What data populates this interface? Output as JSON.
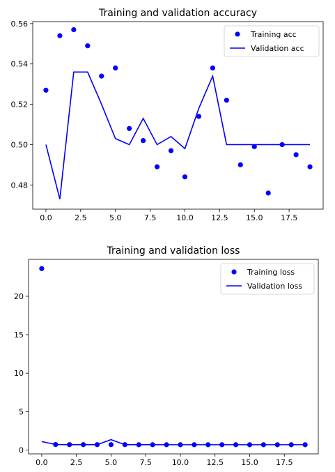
{
  "chart_data": [
    {
      "type": "line",
      "title": "Training and validation accuracy",
      "xlabel": "",
      "ylabel": "",
      "xlim": [
        -0.95,
        19.95
      ],
      "ylim": [
        0.468,
        0.561
      ],
      "xticks": [
        0.0,
        2.5,
        5.0,
        7.5,
        10.0,
        12.5,
        15.0,
        17.5
      ],
      "xtick_labels": [
        "0.0",
        "2.5",
        "5.0",
        "7.5",
        "10.0",
        "12.5",
        "15.0",
        "17.5"
      ],
      "yticks": [
        0.48,
        0.5,
        0.52,
        0.54,
        0.56
      ],
      "ytick_labels": [
        "0.48",
        "0.50",
        "0.52",
        "0.54",
        "0.56"
      ],
      "grid": false,
      "legend_position": "top-right",
      "series": [
        {
          "name": "Training acc",
          "style": "points",
          "color": "#0000ff",
          "x": [
            0,
            1,
            2,
            3,
            4,
            5,
            6,
            7,
            8,
            9,
            10,
            11,
            12,
            13,
            14,
            15,
            16,
            17,
            18,
            19
          ],
          "y": [
            0.527,
            0.554,
            0.557,
            0.549,
            0.534,
            0.538,
            0.508,
            0.502,
            0.489,
            0.497,
            0.484,
            0.514,
            0.538,
            0.522,
            0.49,
            0.499,
            0.476,
            0.5,
            0.495,
            0.489
          ]
        },
        {
          "name": "Validation acc",
          "style": "line",
          "color": "#0000ff",
          "x": [
            0,
            1,
            2,
            3,
            4,
            5,
            6,
            7,
            8,
            9,
            10,
            11,
            12,
            13,
            14,
            15,
            16,
            17,
            18,
            19
          ],
          "y": [
            0.5,
            0.473,
            0.536,
            0.536,
            0.52,
            0.503,
            0.5,
            0.513,
            0.5,
            0.504,
            0.498,
            0.518,
            0.534,
            0.5,
            0.5,
            0.5,
            0.5,
            0.5,
            0.5,
            0.5
          ]
        }
      ]
    },
    {
      "type": "line",
      "title": "Training and validation loss",
      "xlabel": "",
      "ylabel": "",
      "xlim": [
        -0.95,
        19.95
      ],
      "ylim": [
        -0.5,
        24.8
      ],
      "xticks": [
        0.0,
        2.5,
        5.0,
        7.5,
        10.0,
        12.5,
        15.0,
        17.5
      ],
      "xtick_labels": [
        "0.0",
        "2.5",
        "5.0",
        "7.5",
        "10.0",
        "12.5",
        "15.0",
        "17.5"
      ],
      "yticks": [
        0,
        5,
        10,
        15,
        20
      ],
      "ytick_labels": [
        "0",
        "5",
        "10",
        "15",
        "20"
      ],
      "grid": false,
      "legend_position": "top-right",
      "series": [
        {
          "name": "Training loss",
          "style": "points",
          "color": "#0000ff",
          "x": [
            0,
            1,
            2,
            3,
            4,
            5,
            6,
            7,
            8,
            9,
            10,
            11,
            12,
            13,
            14,
            15,
            16,
            17,
            18,
            19
          ],
          "y": [
            23.6,
            0.72,
            0.7,
            0.7,
            0.7,
            0.7,
            0.7,
            0.69,
            0.69,
            0.69,
            0.69,
            0.69,
            0.69,
            0.69,
            0.69,
            0.69,
            0.69,
            0.69,
            0.69,
            0.69
          ]
        },
        {
          "name": "Validation loss",
          "style": "line",
          "color": "#0000ff",
          "x": [
            0,
            1,
            2,
            3,
            4,
            5,
            6,
            7,
            8,
            9,
            10,
            11,
            12,
            13,
            14,
            15,
            16,
            17,
            18,
            19
          ],
          "y": [
            1.1,
            0.72,
            0.7,
            0.7,
            0.7,
            1.35,
            0.7,
            0.7,
            0.7,
            0.69,
            0.69,
            0.69,
            0.69,
            0.69,
            0.69,
            0.69,
            0.69,
            0.69,
            0.69,
            0.69
          ]
        }
      ]
    }
  ]
}
